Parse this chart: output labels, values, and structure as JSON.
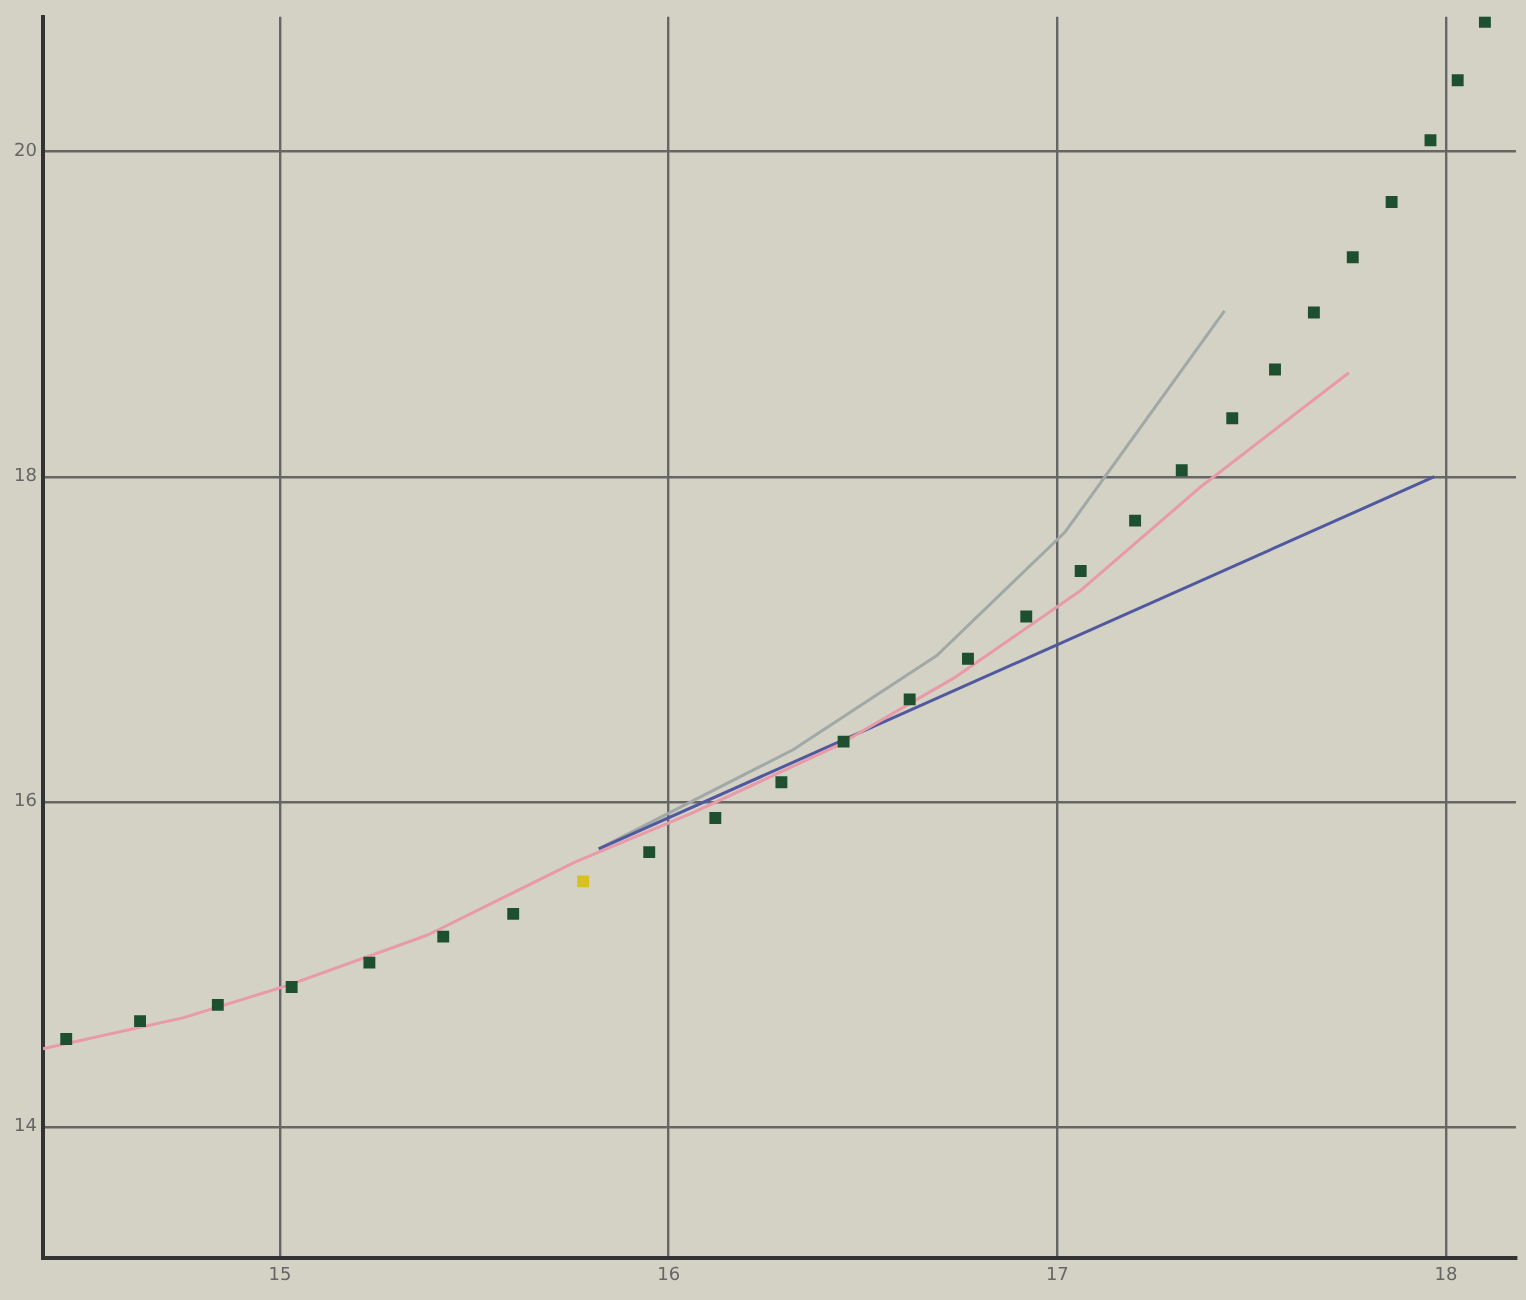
{
  "chart_data": {
    "type": "scatter",
    "xlim": [
      14.39,
      18.18
    ],
    "ylim": [
      13.19,
      20.83
    ],
    "xticks": [
      15,
      16,
      17,
      18
    ],
    "yticks": [
      14,
      16,
      18,
      20
    ],
    "grid": true,
    "legend": false,
    "series": [
      {
        "type": "scatter",
        "color": "#1e5030",
        "marker": "square",
        "x": [
          14.45,
          14.64,
          14.84,
          15.03,
          15.23,
          15.42,
          15.6,
          15.95,
          16.12,
          16.29,
          16.45,
          16.62,
          16.77,
          16.92,
          17.06,
          17.2,
          17.32,
          17.45,
          17.56,
          17.66,
          17.76,
          17.86,
          17.96,
          18.03,
          18.1
        ],
        "values": [
          14.54,
          14.65,
          14.75,
          14.86,
          15.01,
          15.17,
          15.31,
          15.69,
          15.9,
          16.12,
          16.37,
          16.63,
          16.88,
          17.14,
          17.42,
          17.73,
          18.04,
          18.36,
          18.66,
          19.01,
          19.35,
          19.69,
          20.07,
          20.44,
          20.8
        ]
      },
      {
        "type": "scatter",
        "color": "#d8c020",
        "marker": "square",
        "x": [
          15.78
        ],
        "values": [
          15.51
        ]
      },
      {
        "type": "line",
        "color": "#e89aa8",
        "marker": "none",
        "x": [
          14.39,
          14.75,
          15.02,
          15.38,
          15.76,
          16.06,
          16.43,
          16.74,
          17.06,
          17.37,
          17.75
        ],
        "values": [
          14.48,
          14.67,
          14.87,
          15.18,
          15.63,
          15.93,
          16.34,
          16.77,
          17.3,
          17.94,
          18.64
        ]
      },
      {
        "type": "line",
        "color": "#5058a0",
        "marker": "none",
        "x": [
          15.82,
          17.97
        ],
        "values": [
          15.71,
          18.0
        ]
      },
      {
        "type": "line",
        "color": "#a0a8a8",
        "marker": "none",
        "x": [
          15.82,
          16.32,
          16.69,
          17.02,
          17.43
        ],
        "values": [
          15.71,
          16.32,
          16.9,
          17.66,
          19.02
        ]
      }
    ]
  }
}
